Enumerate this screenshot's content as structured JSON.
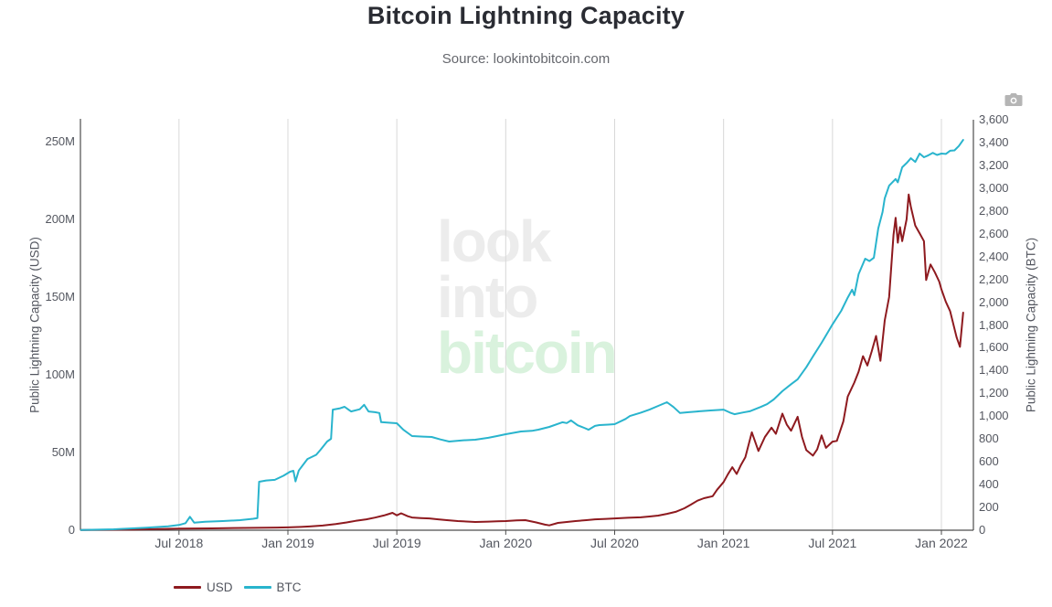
{
  "header": {
    "title": "Bitcoin Lightning Capacity",
    "source": "Source: lookintobitcoin.com"
  },
  "toolbar": {
    "camera_icon": "camera",
    "icon_color": "#b5b5b5"
  },
  "watermark": {
    "line1": "look",
    "line2": "into",
    "line3": "bitcoin",
    "gray_color": "#ececec",
    "green_color": "#d9f2dd"
  },
  "legend": {
    "items": [
      {
        "label": "USD",
        "color": "#8e1a1f"
      },
      {
        "label": "BTC",
        "color": "#29b4cd"
      }
    ]
  },
  "chart_data": {
    "type": "line",
    "title": "Bitcoin Lightning Capacity",
    "subtitle": "Source: lookintobitcoin.com",
    "grid": "vertical-only",
    "legend_position": "bottom-left",
    "x_ticks": [
      {
        "label": "Jul 2018",
        "year": 2018.5
      },
      {
        "label": "Jan 2019",
        "year": 2019.0
      },
      {
        "label": "Jul 2019",
        "year": 2019.5
      },
      {
        "label": "Jan 2020",
        "year": 2020.0
      },
      {
        "label": "Jul 2020",
        "year": 2020.5
      },
      {
        "label": "Jan 2021",
        "year": 2021.0
      },
      {
        "label": "Jul 2021",
        "year": 2021.5
      },
      {
        "label": "Jan 2022",
        "year": 2022.0
      }
    ],
    "x_range_years": [
      2018.05,
      2022.15
    ],
    "y_left": {
      "label": "Public Lightning Capacity (USD)",
      "unit": "million USD",
      "tick_values": [
        0,
        50,
        100,
        150,
        200,
        250
      ],
      "tick_labels": [
        "0",
        "50M",
        "100M",
        "150M",
        "200M",
        "250M"
      ],
      "range": [
        0,
        264.7
      ]
    },
    "y_right": {
      "label": "Public Lightning Capacity (BTC)",
      "unit": "BTC",
      "tick_values": [
        0,
        200,
        400,
        600,
        800,
        1000,
        1200,
        1400,
        1600,
        1800,
        2000,
        2200,
        2400,
        2600,
        2800,
        3000,
        3200,
        3400,
        3600
      ],
      "tick_labels": [
        "0",
        "200",
        "400",
        "600",
        "800",
        "1,000",
        "1,200",
        "1,400",
        "1,600",
        "1,800",
        "2,000",
        "2,200",
        "2,400",
        "2,600",
        "2,800",
        "3,000",
        "3,200",
        "3,400",
        "3,600"
      ],
      "range": [
        0,
        3608
      ]
    },
    "series": [
      {
        "name": "USD",
        "axis": "left",
        "color": "#8e1a1f",
        "points": [
          [
            2018.05,
            0.1
          ],
          [
            2018.2,
            0.3
          ],
          [
            2018.35,
            0.6
          ],
          [
            2018.5,
            1.0
          ],
          [
            2018.65,
            1.2
          ],
          [
            2018.8,
            1.5
          ],
          [
            2018.95,
            1.7
          ],
          [
            2019.0,
            1.8
          ],
          [
            2019.06,
            2.1
          ],
          [
            2019.1,
            2.4
          ],
          [
            2019.16,
            3.0
          ],
          [
            2019.22,
            4.0
          ],
          [
            2019.27,
            5.0
          ],
          [
            2019.31,
            6.0
          ],
          [
            2019.36,
            7.0
          ],
          [
            2019.4,
            8.1
          ],
          [
            2019.44,
            9.5
          ],
          [
            2019.46,
            10.3
          ],
          [
            2019.48,
            11.2
          ],
          [
            2019.5,
            9.6
          ],
          [
            2019.52,
            10.9
          ],
          [
            2019.55,
            9.0
          ],
          [
            2019.57,
            8.2
          ],
          [
            2019.61,
            7.8
          ],
          [
            2019.65,
            7.6
          ],
          [
            2019.69,
            7.0
          ],
          [
            2019.73,
            6.5
          ],
          [
            2019.78,
            5.9
          ],
          [
            2019.82,
            5.6
          ],
          [
            2019.86,
            5.3
          ],
          [
            2019.92,
            5.5
          ],
          [
            2019.96,
            5.7
          ],
          [
            2020.0,
            5.9
          ],
          [
            2020.05,
            6.3
          ],
          [
            2020.09,
            6.5
          ],
          [
            2020.14,
            5.0
          ],
          [
            2020.18,
            3.6
          ],
          [
            2020.2,
            3.1
          ],
          [
            2020.24,
            4.7
          ],
          [
            2020.28,
            5.3
          ],
          [
            2020.32,
            5.9
          ],
          [
            2020.37,
            6.5
          ],
          [
            2020.41,
            7.0
          ],
          [
            2020.46,
            7.3
          ],
          [
            2020.5,
            7.6
          ],
          [
            2020.56,
            8.0
          ],
          [
            2020.62,
            8.3
          ],
          [
            2020.66,
            8.8
          ],
          [
            2020.7,
            9.4
          ],
          [
            2020.74,
            10.5
          ],
          [
            2020.78,
            11.8
          ],
          [
            2020.82,
            14.1
          ],
          [
            2020.85,
            16.5
          ],
          [
            2020.88,
            19.0
          ],
          [
            2020.91,
            20.6
          ],
          [
            2020.95,
            21.9
          ],
          [
            2020.97,
            26.0
          ],
          [
            2021.0,
            31.0
          ],
          [
            2021.02,
            36.0
          ],
          [
            2021.04,
            40.5
          ],
          [
            2021.06,
            36.2
          ],
          [
            2021.08,
            42.0
          ],
          [
            2021.1,
            47.0
          ],
          [
            2021.13,
            63.0
          ],
          [
            2021.16,
            51.0
          ],
          [
            2021.19,
            60.0
          ],
          [
            2021.22,
            66.0
          ],
          [
            2021.24,
            62.0
          ],
          [
            2021.27,
            75.0
          ],
          [
            2021.29,
            68.0
          ],
          [
            2021.31,
            64.0
          ],
          [
            2021.34,
            73.0
          ],
          [
            2021.36,
            60.0
          ],
          [
            2021.38,
            51.5
          ],
          [
            2021.41,
            48.0
          ],
          [
            2021.43,
            52.0
          ],
          [
            2021.45,
            61.0
          ],
          [
            2021.47,
            53.0
          ],
          [
            2021.5,
            57.0
          ],
          [
            2021.52,
            57.5
          ],
          [
            2021.55,
            70.0
          ],
          [
            2021.57,
            86.0
          ],
          [
            2021.6,
            95.0
          ],
          [
            2021.62,
            102.0
          ],
          [
            2021.64,
            112.0
          ],
          [
            2021.66,
            106.0
          ],
          [
            2021.68,
            115.0
          ],
          [
            2021.7,
            125.0
          ],
          [
            2021.72,
            109.0
          ],
          [
            2021.74,
            135.0
          ],
          [
            2021.76,
            150.0
          ],
          [
            2021.77,
            170.0
          ],
          [
            2021.78,
            190.0
          ],
          [
            2021.79,
            201.0
          ],
          [
            2021.8,
            185.0
          ],
          [
            2021.81,
            195.0
          ],
          [
            2021.82,
            186.0
          ],
          [
            2021.84,
            200.0
          ],
          [
            2021.85,
            216.0
          ],
          [
            2021.86,
            208.0
          ],
          [
            2021.88,
            196.0
          ],
          [
            2021.9,
            191.0
          ],
          [
            2021.92,
            186.0
          ],
          [
            2021.93,
            161.0
          ],
          [
            2021.95,
            171.0
          ],
          [
            2021.97,
            166.0
          ],
          [
            2021.99,
            160.0
          ],
          [
            2022.0,
            155.0
          ],
          [
            2022.02,
            147.0
          ],
          [
            2022.04,
            141.0
          ],
          [
            2022.07,
            124.0
          ],
          [
            2022.085,
            118.0
          ],
          [
            2022.1,
            140.0
          ]
        ]
      },
      {
        "name": "BTC",
        "axis": "right",
        "color": "#29b4cd",
        "points": [
          [
            2018.05,
            2
          ],
          [
            2018.2,
            8
          ],
          [
            2018.35,
            22
          ],
          [
            2018.45,
            34
          ],
          [
            2018.5,
            46
          ],
          [
            2018.53,
            62
          ],
          [
            2018.55,
            118
          ],
          [
            2018.57,
            66
          ],
          [
            2018.62,
            74
          ],
          [
            2018.7,
            80
          ],
          [
            2018.78,
            88
          ],
          [
            2018.84,
            100
          ],
          [
            2018.86,
            106
          ],
          [
            2018.868,
            425
          ],
          [
            2018.9,
            436
          ],
          [
            2018.94,
            442
          ],
          [
            2018.98,
            478
          ],
          [
            2019.01,
            513
          ],
          [
            2019.025,
            521
          ],
          [
            2019.035,
            428
          ],
          [
            2019.05,
            524
          ],
          [
            2019.09,
            625
          ],
          [
            2019.13,
            662
          ],
          [
            2019.15,
            706
          ],
          [
            2019.18,
            778
          ],
          [
            2019.198,
            802
          ],
          [
            2019.206,
            1058
          ],
          [
            2019.24,
            1070
          ],
          [
            2019.26,
            1083
          ],
          [
            2019.29,
            1042
          ],
          [
            2019.33,
            1061
          ],
          [
            2019.35,
            1100
          ],
          [
            2019.37,
            1042
          ],
          [
            2019.4,
            1035
          ],
          [
            2019.42,
            1028
          ],
          [
            2019.428,
            948
          ],
          [
            2019.47,
            942
          ],
          [
            2019.5,
            938
          ],
          [
            2019.53,
            881
          ],
          [
            2019.57,
            826
          ],
          [
            2019.62,
            821
          ],
          [
            2019.66,
            818
          ],
          [
            2019.7,
            796
          ],
          [
            2019.74,
            778
          ],
          [
            2019.8,
            788
          ],
          [
            2019.86,
            794
          ],
          [
            2019.92,
            811
          ],
          [
            2019.96,
            826
          ],
          [
            2020.0,
            842
          ],
          [
            2020.07,
            866
          ],
          [
            2020.12,
            872
          ],
          [
            2020.15,
            882
          ],
          [
            2020.2,
            906
          ],
          [
            2020.26,
            947
          ],
          [
            2020.28,
            940
          ],
          [
            2020.3,
            963
          ],
          [
            2020.33,
            921
          ],
          [
            2020.36,
            898
          ],
          [
            2020.38,
            881
          ],
          [
            2020.41,
            915
          ],
          [
            2020.43,
            922
          ],
          [
            2020.47,
            926
          ],
          [
            2020.5,
            930
          ],
          [
            2020.55,
            976
          ],
          [
            2020.57,
            1002
          ],
          [
            2020.62,
            1031
          ],
          [
            2020.66,
            1058
          ],
          [
            2020.7,
            1091
          ],
          [
            2020.74,
            1123
          ],
          [
            2020.77,
            1081
          ],
          [
            2020.8,
            1028
          ],
          [
            2020.84,
            1035
          ],
          [
            2020.89,
            1043
          ],
          [
            2020.94,
            1051
          ],
          [
            2021.0,
            1058
          ],
          [
            2021.03,
            1031
          ],
          [
            2021.05,
            1018
          ],
          [
            2021.09,
            1033
          ],
          [
            2021.12,
            1043
          ],
          [
            2021.17,
            1081
          ],
          [
            2021.2,
            1106
          ],
          [
            2021.23,
            1147
          ],
          [
            2021.27,
            1220
          ],
          [
            2021.31,
            1281
          ],
          [
            2021.34,
            1324
          ],
          [
            2021.38,
            1430
          ],
          [
            2021.41,
            1524
          ],
          [
            2021.45,
            1644
          ],
          [
            2021.48,
            1741
          ],
          [
            2021.5,
            1805
          ],
          [
            2021.54,
            1925
          ],
          [
            2021.57,
            2040
          ],
          [
            2021.59,
            2110
          ],
          [
            2021.6,
            2062
          ],
          [
            2021.62,
            2246
          ],
          [
            2021.65,
            2382
          ],
          [
            2021.67,
            2361
          ],
          [
            2021.69,
            2391
          ],
          [
            2021.71,
            2647
          ],
          [
            2021.73,
            2791
          ],
          [
            2021.74,
            2912
          ],
          [
            2021.76,
            3023
          ],
          [
            2021.79,
            3081
          ],
          [
            2021.8,
            3052
          ],
          [
            2021.82,
            3184
          ],
          [
            2021.84,
            3221
          ],
          [
            2021.86,
            3263
          ],
          [
            2021.88,
            3231
          ],
          [
            2021.9,
            3304
          ],
          [
            2021.92,
            3272
          ],
          [
            2021.94,
            3289
          ],
          [
            2021.96,
            3311
          ],
          [
            2021.98,
            3292
          ],
          [
            2022.0,
            3304
          ],
          [
            2022.02,
            3301
          ],
          [
            2022.04,
            3329
          ],
          [
            2022.06,
            3332
          ],
          [
            2022.08,
            3371
          ],
          [
            2022.1,
            3424
          ]
        ]
      }
    ]
  }
}
